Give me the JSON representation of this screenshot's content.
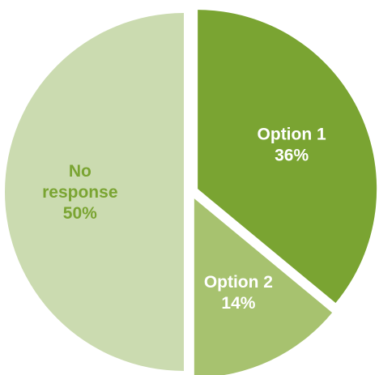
{
  "chart_data": {
    "type": "pie",
    "title": "",
    "slices": [
      {
        "name": "Option 1",
        "label_lines": [
          "Option 1",
          "36%"
        ],
        "value": 36,
        "color": "#7aa432",
        "label_color": "#ffffff"
      },
      {
        "name": "Option 2",
        "label_lines": [
          "Option 2",
          "14%"
        ],
        "value": 14,
        "color": "#a7c26f",
        "label_color": "#ffffff"
      },
      {
        "name": "No response",
        "label_lines": [
          "No",
          "response",
          "50%"
        ],
        "value": 50,
        "color": "#cbdbb0",
        "label_color": "#7aa432"
      }
    ],
    "start_angle": "12 o'clock",
    "direction": "clockwise",
    "exploded": true,
    "background": "#ffffff"
  }
}
